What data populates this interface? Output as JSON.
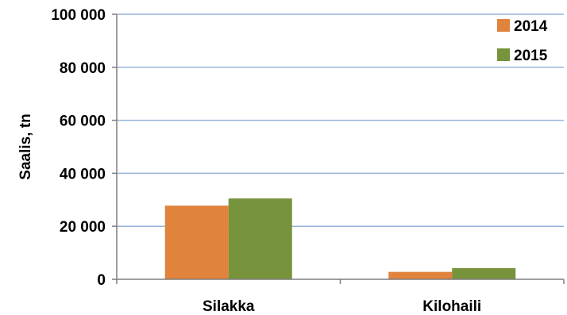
{
  "chart_data": {
    "type": "bar",
    "title": "",
    "xlabel": "",
    "ylabel": "Saalis, tn",
    "categories": [
      "Silakka",
      "Kilohaili"
    ],
    "series": [
      {
        "name": "2014",
        "color": "#E0833C",
        "values": [
          27800,
          2800
        ]
      },
      {
        "name": "2015",
        "color": "#77933C",
        "values": [
          30500,
          4200
        ]
      }
    ],
    "ylim": [
      0,
      100000
    ],
    "yticks": [
      0,
      20000,
      40000,
      60000,
      80000,
      100000
    ],
    "ytick_labels": [
      "0",
      "20 000",
      "40 000",
      "60 000",
      "80 000",
      "100 000"
    ],
    "grid": true,
    "grid_color": "#95B3D7",
    "legend_position": "top-right"
  }
}
